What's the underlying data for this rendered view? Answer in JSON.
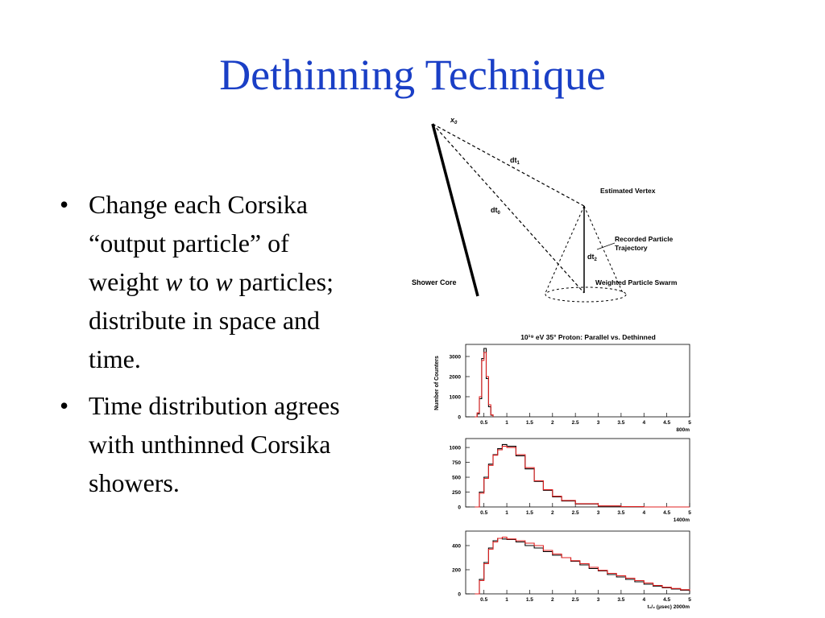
{
  "slide": {
    "title": "Dethinning Technique",
    "bullets": [
      {
        "parts": [
          {
            "text": "Change each Corsika “output particle” of weight ",
            "italic": false
          },
          {
            "text": "w",
            "italic": true
          },
          {
            "text": " to ",
            "italic": false
          },
          {
            "text": "w",
            "italic": true
          },
          {
            "text": " particles; distribute in space and time.",
            "italic": false
          }
        ]
      },
      {
        "parts": [
          {
            "text": "Time distribution agrees with unthinned Corsika showers.",
            "italic": false
          }
        ]
      }
    ]
  },
  "diagram": {
    "x0_label": "x",
    "x0_sub": "0",
    "dt1_label": "dt",
    "dt1_sub": "1",
    "dt0_label": "dt",
    "dt0_sub": "0",
    "dt2_label": "dt",
    "dt2_sub": "2",
    "estimated_vertex": "Estimated Vertex",
    "recorded_line1": "Recorded Particle",
    "recorded_line2": "Trajectory",
    "weighted_swarm": "Weighted Particle Swarm",
    "shower_core": "Shower Core"
  },
  "chart_data": {
    "type": "line",
    "title": "10¹⁹ eV 35° Proton: Parallel vs. Dethinned",
    "ylabel": "Number of Counters",
    "xlabel": "t₁/₂ (μsec)",
    "x_ticks": [
      "0.5",
      "1",
      "1.5",
      "2",
      "2.5",
      "3",
      "3.5",
      "4",
      "4.5",
      "5"
    ],
    "xlim": [
      0.1,
      5.0
    ],
    "colors": {
      "parallel": "#000000",
      "dethinned": "#e02020"
    },
    "panels": [
      {
        "distance": "800m",
        "ylim": [
          0,
          3600
        ],
        "yticks": [
          "0",
          "1000",
          "2000",
          "3000"
        ],
        "series": [
          {
            "key": "parallel",
            "x": [
              0.3,
              0.35,
              0.4,
              0.45,
              0.5,
              0.55,
              0.6,
              0.65,
              0.7
            ],
            "values": [
              0,
              150,
              900,
              2900,
              3400,
              1900,
              500,
              80,
              0
            ]
          },
          {
            "key": "dethinned",
            "x": [
              0.3,
              0.35,
              0.4,
              0.45,
              0.5,
              0.55,
              0.6,
              0.65,
              0.7
            ],
            "values": [
              0,
              200,
              1000,
              2800,
              3200,
              2000,
              600,
              100,
              0
            ]
          }
        ]
      },
      {
        "distance": "1400m",
        "ylim": [
          0,
          1150
        ],
        "yticks": [
          "0",
          "250",
          "500",
          "750",
          "1000"
        ],
        "series": [
          {
            "key": "parallel",
            "x": [
              0.3,
              0.4,
              0.5,
              0.6,
              0.7,
              0.8,
              0.9,
              1.0,
              1.2,
              1.4,
              1.6,
              1.8,
              2.0,
              2.2,
              2.5,
              3.0,
              3.5,
              4.0,
              5.0
            ],
            "values": [
              0,
              250,
              500,
              720,
              880,
              980,
              1050,
              1020,
              860,
              640,
              430,
              280,
              170,
              100,
              50,
              15,
              5,
              0,
              0
            ]
          },
          {
            "key": "dethinned",
            "x": [
              0.3,
              0.4,
              0.5,
              0.6,
              0.7,
              0.8,
              0.9,
              1.0,
              1.2,
              1.4,
              1.6,
              1.8,
              2.0,
              2.2,
              2.5,
              3.0,
              3.5,
              4.0,
              5.0
            ],
            "values": [
              0,
              230,
              480,
              700,
              870,
              960,
              1020,
              1000,
              880,
              660,
              440,
              290,
              180,
              110,
              55,
              18,
              6,
              0,
              0
            ]
          }
        ]
      },
      {
        "distance": "2000m",
        "ylim": [
          0,
          520
        ],
        "yticks": [
          "0",
          "200",
          "400"
        ],
        "series": [
          {
            "key": "parallel",
            "x": [
              0.3,
              0.4,
              0.5,
              0.6,
              0.7,
              0.8,
              0.9,
              1.0,
              1.2,
              1.4,
              1.6,
              1.8,
              2.0,
              2.2,
              2.4,
              2.6,
              2.8,
              3.0,
              3.2,
              3.4,
              3.6,
              3.8,
              4.0,
              4.2,
              4.4,
              4.6,
              4.8,
              5.0
            ],
            "values": [
              0,
              120,
              260,
              380,
              440,
              460,
              455,
              450,
              430,
              400,
              380,
              350,
              320,
              300,
              270,
              240,
              210,
              190,
              160,
              140,
              120,
              100,
              80,
              65,
              50,
              40,
              30,
              20
            ]
          },
          {
            "key": "dethinned",
            "x": [
              0.3,
              0.4,
              0.5,
              0.6,
              0.7,
              0.8,
              0.9,
              1.0,
              1.2,
              1.4,
              1.6,
              1.8,
              2.0,
              2.2,
              2.4,
              2.6,
              2.8,
              3.0,
              3.2,
              3.4,
              3.6,
              3.8,
              4.0,
              4.2,
              4.4,
              4.6,
              4.8,
              5.0
            ],
            "values": [
              0,
              110,
              250,
              370,
              430,
              460,
              470,
              455,
              440,
              420,
              400,
              360,
              330,
              300,
              275,
              250,
              220,
              195,
              170,
              150,
              130,
              110,
              90,
              70,
              55,
              45,
              35,
              25
            ]
          }
        ]
      }
    ]
  }
}
